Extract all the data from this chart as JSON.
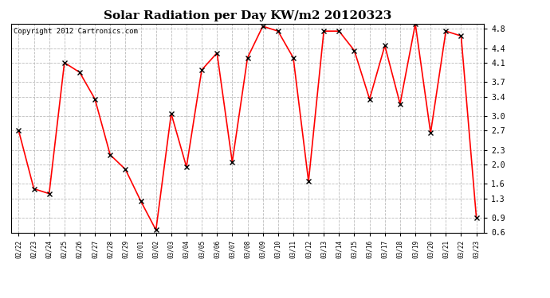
{
  "title": "Solar Radiation per Day KW/m2 20120323",
  "copyright": "Copyright 2012 Cartronics.com",
  "labels": [
    "02/22",
    "02/23",
    "02/24",
    "02/25",
    "02/26",
    "02/27",
    "02/28",
    "02/29",
    "03/01",
    "03/02",
    "03/03",
    "03/04",
    "03/05",
    "03/06",
    "03/07",
    "03/08",
    "03/09",
    "03/10",
    "03/11",
    "03/12",
    "03/13",
    "03/14",
    "03/15",
    "03/16",
    "03/17",
    "03/18",
    "03/19",
    "03/20",
    "03/21",
    "03/22",
    "03/23"
  ],
  "values": [
    2.7,
    1.5,
    1.4,
    4.1,
    3.9,
    3.35,
    2.2,
    1.9,
    1.25,
    0.65,
    3.05,
    1.95,
    3.95,
    4.3,
    2.05,
    4.2,
    4.85,
    4.75,
    4.2,
    1.65,
    4.75,
    4.75,
    4.35,
    3.35,
    4.45,
    3.25,
    4.9,
    2.65,
    4.75,
    4.65,
    0.9
  ],
  "line_color": "#ff0000",
  "marker": "x",
  "marker_color": "#000000",
  "background_color": "#ffffff",
  "grid_color": "#bbbbbb",
  "ylim": [
    0.6,
    4.9
  ],
  "yticks": [
    0.6,
    0.9,
    1.3,
    1.6,
    2.0,
    2.3,
    2.7,
    3.0,
    3.4,
    3.7,
    4.1,
    4.4,
    4.8
  ],
  "title_fontsize": 11,
  "copyright_fontsize": 6.5,
  "xtick_fontsize": 5.5,
  "ytick_fontsize": 7
}
